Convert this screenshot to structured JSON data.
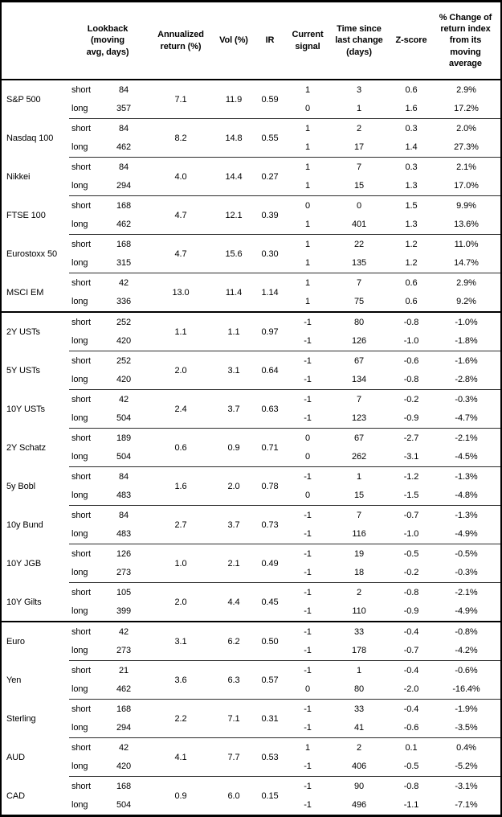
{
  "table": {
    "headers": {
      "lookback": "Lookback\n(moving\navg, days)",
      "annualized_return": "Annualized\nreturn (%)",
      "vol": "Vol (%)",
      "ir": "IR",
      "current_signal": "Current\nsignal",
      "time_since_last_change": "Time since\nlast change\n(days)",
      "zscore": "Z-score",
      "pct_change": "% Change of\nreturn index\nfrom its\nmoving\naverage"
    },
    "labels": {
      "short": "short",
      "long": "long"
    },
    "sections": [
      {
        "rows": [
          {
            "name": "S&P 500",
            "ann": "7.1",
            "vol": "11.9",
            "ir": "0.59",
            "short": {
              "lookback": "84",
              "signal": "1",
              "time": "3",
              "z": "0.6",
              "pct": "2.9%"
            },
            "long": {
              "lookback": "357",
              "signal": "0",
              "time": "1",
              "z": "1.6",
              "pct": "17.2%"
            }
          },
          {
            "name": "Nasdaq 100",
            "ann": "8.2",
            "vol": "14.8",
            "ir": "0.55",
            "short": {
              "lookback": "84",
              "signal": "1",
              "time": "2",
              "z": "0.3",
              "pct": "2.0%"
            },
            "long": {
              "lookback": "462",
              "signal": "1",
              "time": "17",
              "z": "1.4",
              "pct": "27.3%"
            }
          },
          {
            "name": "Nikkei",
            "ann": "4.0",
            "vol": "14.4",
            "ir": "0.27",
            "short": {
              "lookback": "84",
              "signal": "1",
              "time": "7",
              "z": "0.3",
              "pct": "2.1%"
            },
            "long": {
              "lookback": "294",
              "signal": "1",
              "time": "15",
              "z": "1.3",
              "pct": "17.0%"
            }
          },
          {
            "name": "FTSE 100",
            "ann": "4.7",
            "vol": "12.1",
            "ir": "0.39",
            "short": {
              "lookback": "168",
              "signal": "0",
              "time": "0",
              "z": "1.5",
              "pct": "9.9%"
            },
            "long": {
              "lookback": "462",
              "signal": "1",
              "time": "401",
              "z": "1.3",
              "pct": "13.6%"
            }
          },
          {
            "name": "Eurostoxx 50",
            "ann": "4.7",
            "vol": "15.6",
            "ir": "0.30",
            "short": {
              "lookback": "168",
              "signal": "1",
              "time": "22",
              "z": "1.2",
              "pct": "11.0%"
            },
            "long": {
              "lookback": "315",
              "signal": "1",
              "time": "135",
              "z": "1.2",
              "pct": "14.7%"
            }
          },
          {
            "name": "MSCI EM",
            "ann": "13.0",
            "vol": "11.4",
            "ir": "1.14",
            "short": {
              "lookback": "42",
              "signal": "1",
              "time": "7",
              "z": "0.6",
              "pct": "2.9%"
            },
            "long": {
              "lookback": "336",
              "signal": "1",
              "time": "75",
              "z": "0.6",
              "pct": "9.2%"
            }
          }
        ]
      },
      {
        "rows": [
          {
            "name": "2Y USTs",
            "ann": "1.1",
            "vol": "1.1",
            "ir": "0.97",
            "short": {
              "lookback": "252",
              "signal": "-1",
              "time": "80",
              "z": "-0.8",
              "pct": "-1.0%"
            },
            "long": {
              "lookback": "420",
              "signal": "-1",
              "time": "126",
              "z": "-1.0",
              "pct": "-1.8%"
            }
          },
          {
            "name": "5Y USTs",
            "ann": "2.0",
            "vol": "3.1",
            "ir": "0.64",
            "short": {
              "lookback": "252",
              "signal": "-1",
              "time": "67",
              "z": "-0.6",
              "pct": "-1.6%"
            },
            "long": {
              "lookback": "420",
              "signal": "-1",
              "time": "134",
              "z": "-0.8",
              "pct": "-2.8%"
            }
          },
          {
            "name": "10Y USTs",
            "ann": "2.4",
            "vol": "3.7",
            "ir": "0.63",
            "short": {
              "lookback": "42",
              "signal": "-1",
              "time": "7",
              "z": "-0.2",
              "pct": "-0.3%"
            },
            "long": {
              "lookback": "504",
              "signal": "-1",
              "time": "123",
              "z": "-0.9",
              "pct": "-4.7%"
            }
          },
          {
            "name": "2Y Schatz",
            "ann": "0.6",
            "vol": "0.9",
            "ir": "0.71",
            "short": {
              "lookback": "189",
              "signal": "0",
              "time": "67",
              "z": "-2.7",
              "pct": "-2.1%"
            },
            "long": {
              "lookback": "504",
              "signal": "0",
              "time": "262",
              "z": "-3.1",
              "pct": "-4.5%"
            }
          },
          {
            "name": "5y Bobl",
            "ann": "1.6",
            "vol": "2.0",
            "ir": "0.78",
            "short": {
              "lookback": "84",
              "signal": "-1",
              "time": "1",
              "z": "-1.2",
              "pct": "-1.3%"
            },
            "long": {
              "lookback": "483",
              "signal": "0",
              "time": "15",
              "z": "-1.5",
              "pct": "-4.8%"
            }
          },
          {
            "name": "10y Bund",
            "ann": "2.7",
            "vol": "3.7",
            "ir": "0.73",
            "short": {
              "lookback": "84",
              "signal": "-1",
              "time": "7",
              "z": "-0.7",
              "pct": "-1.3%"
            },
            "long": {
              "lookback": "483",
              "signal": "-1",
              "time": "116",
              "z": "-1.0",
              "pct": "-4.9%"
            }
          },
          {
            "name": "10Y JGB",
            "ann": "1.0",
            "vol": "2.1",
            "ir": "0.49",
            "short": {
              "lookback": "126",
              "signal": "-1",
              "time": "19",
              "z": "-0.5",
              "pct": "-0.5%"
            },
            "long": {
              "lookback": "273",
              "signal": "-1",
              "time": "18",
              "z": "-0.2",
              "pct": "-0.3%"
            }
          },
          {
            "name": "10Y Gilts",
            "ann": "2.0",
            "vol": "4.4",
            "ir": "0.45",
            "short": {
              "lookback": "105",
              "signal": "-1",
              "time": "2",
              "z": "-0.8",
              "pct": "-2.1%"
            },
            "long": {
              "lookback": "399",
              "signal": "-1",
              "time": "110",
              "z": "-0.9",
              "pct": "-4.9%"
            }
          }
        ]
      },
      {
        "rows": [
          {
            "name": "Euro",
            "ann": "3.1",
            "vol": "6.2",
            "ir": "0.50",
            "short": {
              "lookback": "42",
              "signal": "-1",
              "time": "33",
              "z": "-0.4",
              "pct": "-0.8%"
            },
            "long": {
              "lookback": "273",
              "signal": "-1",
              "time": "178",
              "z": "-0.7",
              "pct": "-4.2%"
            }
          },
          {
            "name": "Yen",
            "ann": "3.6",
            "vol": "6.3",
            "ir": "0.57",
            "short": {
              "lookback": "21",
              "signal": "-1",
              "time": "1",
              "z": "-0.4",
              "pct": "-0.6%"
            },
            "long": {
              "lookback": "462",
              "signal": "0",
              "time": "80",
              "z": "-2.0",
              "pct": "-16.4%"
            }
          },
          {
            "name": "Sterling",
            "ann": "2.2",
            "vol": "7.1",
            "ir": "0.31",
            "short": {
              "lookback": "168",
              "signal": "-1",
              "time": "33",
              "z": "-0.4",
              "pct": "-1.9%"
            },
            "long": {
              "lookback": "294",
              "signal": "-1",
              "time": "41",
              "z": "-0.6",
              "pct": "-3.5%"
            }
          },
          {
            "name": "AUD",
            "ann": "4.1",
            "vol": "7.7",
            "ir": "0.53",
            "short": {
              "lookback": "42",
              "signal": "1",
              "time": "2",
              "z": "0.1",
              "pct": "0.4%"
            },
            "long": {
              "lookback": "420",
              "signal": "-1",
              "time": "406",
              "z": "-0.5",
              "pct": "-5.2%"
            }
          },
          {
            "name": "CAD",
            "ann": "0.9",
            "vol": "6.0",
            "ir": "0.15",
            "short": {
              "lookback": "168",
              "signal": "-1",
              "time": "90",
              "z": "-0.8",
              "pct": "-3.1%"
            },
            "long": {
              "lookback": "504",
              "signal": "-1",
              "time": "496",
              "z": "-1.1",
              "pct": "-7.1%"
            }
          }
        ]
      }
    ]
  }
}
